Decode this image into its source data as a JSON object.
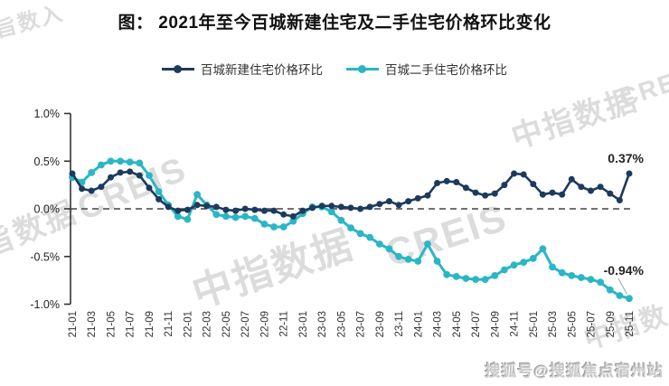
{
  "page": {
    "title": "图： 2021年至今百城新建住宅及二手住宅价格环比变化"
  },
  "legend": [
    {
      "label": "百城新建住宅价格环比",
      "color": "#1d3a5e"
    },
    {
      "label": "百城二手住宅价格环比",
      "color": "#2ab6c5"
    }
  ],
  "watermarks": [
    {
      "text": "旨数入"
    },
    {
      "text": "CREIS"
    },
    {
      "text": "旨数据"
    },
    {
      "text": "中指数据"
    },
    {
      "text": "CREIS"
    },
    {
      "text": "中指数据"
    },
    {
      "text": "中指数"
    },
    {
      "text": "CREIS"
    }
  ],
  "footer": {
    "sohu": "搜狐号@搜狐焦点宿州站"
  },
  "chart_data": {
    "type": "line",
    "title": "图： 2021年至今百城新建住宅及二手住宅价格环比变化",
    "xlabel": "",
    "ylabel": "",
    "ylim": [
      -1.0,
      1.0
    ],
    "grid": false,
    "zero_line": "dashed",
    "legend_position": "top",
    "y_ticks": [
      "1.0%",
      "0.5%",
      "0.0%",
      "-0.5%",
      "-1.0%"
    ],
    "y_tick_values": [
      1.0,
      0.5,
      0.0,
      -0.5,
      -1.0
    ],
    "x": [
      "21-01",
      "21-02",
      "21-03",
      "21-04",
      "21-05",
      "21-06",
      "21-07",
      "21-08",
      "21-09",
      "21-10",
      "21-11",
      "21-12",
      "22-01",
      "22-02",
      "22-03",
      "22-04",
      "22-05",
      "22-06",
      "22-07",
      "22-08",
      "22-09",
      "22-10",
      "22-11",
      "22-12",
      "23-01",
      "23-02",
      "23-03",
      "23-04",
      "23-05",
      "23-06",
      "23-07",
      "23-08",
      "23-09",
      "23-10",
      "23-11",
      "23-12",
      "24-01",
      "24-02",
      "24-03",
      "24-04",
      "24-05",
      "24-06",
      "24-07",
      "24-08",
      "24-09",
      "24-10",
      "24-11",
      "24-12",
      "25-01",
      "25-02",
      "25-03",
      "25-04",
      "25-05",
      "25-06",
      "25-07",
      "25-08",
      "25-09",
      "25-10",
      "25-11"
    ],
    "x_tick_labels": [
      "21-01",
      "21-03",
      "21-05",
      "21-07",
      "21-09",
      "21-11",
      "22-01",
      "22-03",
      "22-05",
      "22-07",
      "22-09",
      "22-11",
      "23-01",
      "23-03",
      "23-05",
      "23-07",
      "23-09",
      "23-11",
      "24-01",
      "24-03",
      "24-05",
      "24-07",
      "24-09",
      "24-11",
      "25-01",
      "25-03",
      "25-05",
      "25-07",
      "25-09",
      "25-11"
    ],
    "series": [
      {
        "name": "百城新建住宅价格环比",
        "color": "#1d3a5e",
        "values": [
          0.37,
          0.21,
          0.19,
          0.23,
          0.33,
          0.38,
          0.39,
          0.35,
          0.22,
          0.1,
          0.02,
          -0.02,
          -0.01,
          0.04,
          0.03,
          0.02,
          -0.01,
          -0.02,
          0.0,
          -0.01,
          -0.02,
          -0.02,
          -0.06,
          -0.08,
          -0.02,
          0.01,
          0.03,
          0.03,
          0.02,
          0.01,
          0.0,
          0.02,
          0.05,
          0.08,
          0.04,
          0.08,
          0.11,
          0.14,
          0.27,
          0.29,
          0.28,
          0.22,
          0.17,
          0.14,
          0.16,
          0.25,
          0.37,
          0.36,
          0.26,
          0.15,
          0.17,
          0.15,
          0.31,
          0.23,
          0.19,
          0.23,
          0.16,
          0.09,
          0.37
        ]
      },
      {
        "name": "百城二手住宅价格环比",
        "color": "#2ab6c5",
        "values": [
          0.33,
          0.28,
          0.38,
          0.46,
          0.5,
          0.5,
          0.49,
          0.48,
          0.35,
          0.18,
          0.04,
          -0.08,
          -0.11,
          0.15,
          0.04,
          -0.06,
          -0.08,
          -0.09,
          -0.08,
          -0.1,
          -0.16,
          -0.19,
          -0.19,
          -0.13,
          -0.05,
          0.02,
          0.02,
          -0.03,
          -0.12,
          -0.2,
          -0.26,
          -0.3,
          -0.37,
          -0.42,
          -0.5,
          -0.53,
          -0.55,
          -0.37,
          -0.55,
          -0.69,
          -0.71,
          -0.73,
          -0.74,
          -0.74,
          -0.7,
          -0.64,
          -0.59,
          -0.56,
          -0.52,
          -0.42,
          -0.61,
          -0.67,
          -0.7,
          -0.72,
          -0.74,
          -0.77,
          -0.85,
          -0.91,
          -0.94
        ]
      }
    ],
    "annotations": [
      {
        "text": "0.37%",
        "series": "百城新建住宅价格环比",
        "x": "25-11"
      },
      {
        "text": "-0.94%",
        "series": "百城二手住宅价格环比",
        "x": "25-11"
      }
    ]
  }
}
